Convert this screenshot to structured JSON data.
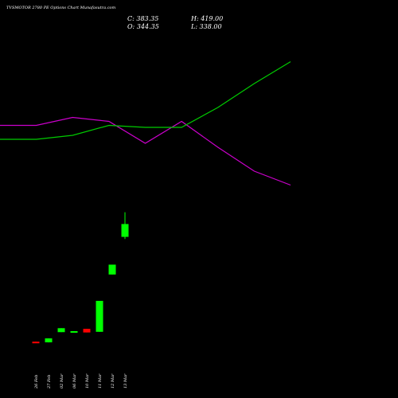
{
  "chart_data": {
    "type": "candlestick",
    "title": "TVSMOTOR 2780  PE Options  Chart Munafasutra.com",
    "ohlc_labels": {
      "c": "C: 383.35",
      "h": "H: 419.00",
      "o": "O: 344.35",
      "l": "L: 338.00"
    },
    "categories": [
      "26 Feb",
      "27 Feb",
      "02 Mar",
      "06 Mar",
      "10 Mar",
      "11 Mar",
      "12 Mar",
      "13 Mar"
    ],
    "candles": [
      {
        "date": "26 Feb",
        "open": 26.0,
        "high": 26.0,
        "low": 25.0,
        "close": 25.0
      },
      {
        "date": "27 Feb",
        "open": 24.0,
        "high": 36.0,
        "low": 24.0,
        "close": 36.0
      },
      {
        "date": "02 Mar",
        "open": 55.0,
        "high": 67.0,
        "low": 55.0,
        "close": 67.0
      },
      {
        "date": "06 Mar",
        "open": 57.0,
        "high": 58.0,
        "low": 57.0,
        "close": 58.0
      },
      {
        "date": "10 Mar",
        "open": 65.0,
        "high": 65.0,
        "low": 54.0,
        "close": 54.0
      },
      {
        "date": "11 Mar",
        "open": 56.0,
        "high": 150.0,
        "low": 56.0,
        "close": 150.0
      },
      {
        "date": "12 Mar",
        "open": 230.0,
        "high": 260.0,
        "low": 230.0,
        "close": 260.0
      },
      {
        "date": "13 Mar",
        "open": 344.35,
        "high": 419.0,
        "low": 338.0,
        "close": 383.35
      }
    ],
    "lines": [
      {
        "color": "#cc00cc",
        "x": [
          0,
          1,
          2,
          3,
          4,
          5,
          6,
          7,
          8
        ],
        "y": [
          0.315,
          0.315,
          0.295,
          0.305,
          0.36,
          0.305,
          0.37,
          0.43,
          0.465
        ]
      },
      {
        "color": "#00cc00",
        "x": [
          0,
          1,
          2,
          3,
          4,
          5,
          6,
          7,
          8
        ],
        "y": [
          0.35,
          0.35,
          0.34,
          0.315,
          0.32,
          0.32,
          0.27,
          0.21,
          0.155
        ]
      }
    ],
    "ylim": [
      0,
      440
    ],
    "colors": {
      "up": "#00ff00",
      "down": "#ff0000"
    }
  }
}
